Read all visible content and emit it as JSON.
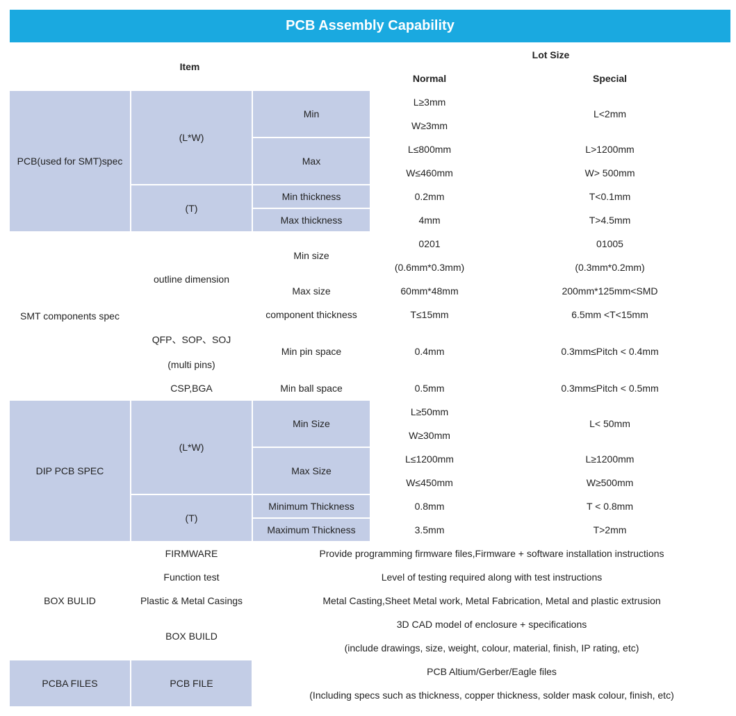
{
  "colors": {
    "title_bg": "#1aa9e0",
    "title_fg": "#ffffff",
    "accent_bg": "#c3cde6",
    "plain_bg": "#ffffff",
    "border": "#ffffff",
    "text": "#222222"
  },
  "title": "PCB Assembly Capability",
  "headers": {
    "item": "Item",
    "lot_size": "Lot Size",
    "normal": "Normal",
    "special": "Special"
  },
  "sections": {
    "pcb_smt": {
      "label": "PCB(used for SMT)spec",
      "lw": "(L*W)",
      "t": "(T)",
      "min": "Min",
      "max": "Max",
      "min_thk": "Min thickness",
      "max_thk": "Max thickness",
      "min_l_n": "L≥3mm",
      "min_w_n": "W≥3mm",
      "min_s": "L<2mm",
      "max_l_n": "L≤800mm",
      "max_l_s": "L>1200mm",
      "max_w_n": "W≤460mm",
      "max_w_s": "W> 500mm",
      "min_thk_n": "0.2mm",
      "min_thk_s": "T<0.1mm",
      "max_thk_n": "4mm",
      "max_thk_s": "T>4.5mm"
    },
    "smt": {
      "label": "SMT components spec",
      "outline": "outline dimension",
      "qfp": "QFP、SOP、SOJ",
      "multi": "(multi pins)",
      "csp": "CSP,BGA",
      "min_size": "Min size",
      "max_size": "Max size",
      "comp_thk": "component thickness",
      "min_pin": "Min pin space",
      "min_ball": "Min ball space",
      "min_size_n1": "0201",
      "min_size_n2": "(0.6mm*0.3mm)",
      "min_size_s1": "01005",
      "min_size_s2": "(0.3mm*0.2mm)",
      "max_size_n": "60mm*48mm",
      "max_size_s": "200mm*125mm<SMD",
      "comp_thk_n": "T≤15mm",
      "comp_thk_s": "6.5mm <T<15mm",
      "min_pin_n": "0.4mm",
      "min_pin_s": "0.3mm≤Pitch < 0.4mm",
      "min_ball_n": "0.5mm",
      "min_ball_s": "0.3mm≤Pitch < 0.5mm"
    },
    "dip": {
      "label": "DIP PCB SPEC",
      "lw": "(L*W)",
      "t": "(T)",
      "min_size": "Min Size",
      "max_size": "Max Size",
      "min_thk": "Minimum Thickness",
      "max_thk": "Maximum Thickness",
      "min_l_n": "L≥50mm",
      "min_w_n": "W≥30mm",
      "min_s": "L< 50mm",
      "max_l_n": "L≤1200mm",
      "max_l_s": "L≥1200mm",
      "max_w_n": "W≤450mm",
      "max_w_s": "W≥500mm",
      "min_thk_n": "0.8mm",
      "min_thk_s": "T < 0.8mm",
      "max_thk_n": "3.5mm",
      "max_thk_s": "T>2mm"
    },
    "box": {
      "label": "BOX BULID",
      "firmware": "FIRMWARE",
      "firmware_v": "Provide programming firmware files,Firmware + software installation instructions",
      "func": "Function test",
      "func_v": "Level of testing required along with test instructions",
      "casing": "Plastic & Metal Casings",
      "casing_v": "Metal Casting,Sheet Metal work, Metal Fabrication, Metal and plastic extrusion",
      "boxbuild": "BOX BUILD",
      "boxbuild_v1": "3D CAD model of enclosure + specifications",
      "boxbuild_v2": "(include drawings, size, weight, colour, material, finish, IP rating, etc)"
    },
    "pcba": {
      "label": "PCBA FILES",
      "pcbfile": "PCB FILE",
      "v1": "PCB Altium/Gerber/Eagle files",
      "v2": "(Including specs such as thickness, copper thickness, solder mask colour, finish, etc)"
    }
  }
}
